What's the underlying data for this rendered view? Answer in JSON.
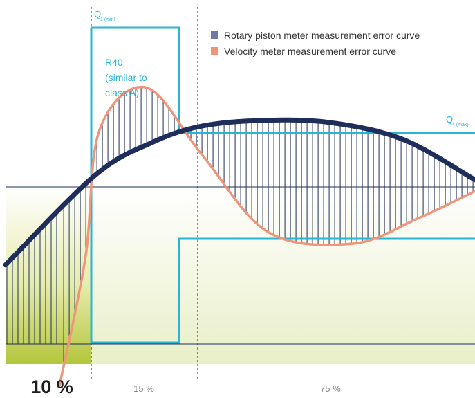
{
  "chart_data": {
    "type": "line",
    "title": "",
    "xlabel": "",
    "ylabel": "",
    "x_segments": [
      {
        "label": "10 %",
        "emphasis": "bold"
      },
      {
        "label": "15 %",
        "emphasis": "light"
      },
      {
        "label": "75 %",
        "emphasis": "light"
      }
    ],
    "flow_markers": [
      {
        "label": "Q",
        "subscript": "1 (min)"
      },
      {
        "label": "Q",
        "subscript": "4 (max)"
      }
    ],
    "accuracy_class": {
      "line1": "R40",
      "line2": "(similar to",
      "line3": "class A)"
    },
    "series": [
      {
        "name": "Rotary piston meter measurement error curve",
        "color": "#1e2d5a",
        "shape": [
          [
            0,
            -0.55
          ],
          [
            0.19,
            0.08
          ],
          [
            0.31,
            0.31
          ],
          [
            0.42,
            0.43
          ],
          [
            0.56,
            0.47
          ],
          [
            0.7,
            0.45
          ],
          [
            0.85,
            0.33
          ],
          [
            1.0,
            0.05
          ]
        ]
      },
      {
        "name": "Velocity meter measurement error curve",
        "color": "#f0957a",
        "shape": [
          [
            0.115,
            -1.4
          ],
          [
            0.17,
            -0.5
          ],
          [
            0.2,
            0.4
          ],
          [
            0.3,
            0.7
          ],
          [
            0.42,
            0.22
          ],
          [
            0.56,
            -0.32
          ],
          [
            0.74,
            -0.4
          ],
          [
            0.88,
            -0.22
          ],
          [
            1.0,
            -0.03
          ]
        ]
      }
    ],
    "colors": {
      "envelope": "#29b6d6",
      "zone_fill": "#c6d24a",
      "grid_line": "#1e2d5a",
      "hatch": "#1e2d5a"
    },
    "legend_position": "top-right",
    "grid": false
  }
}
